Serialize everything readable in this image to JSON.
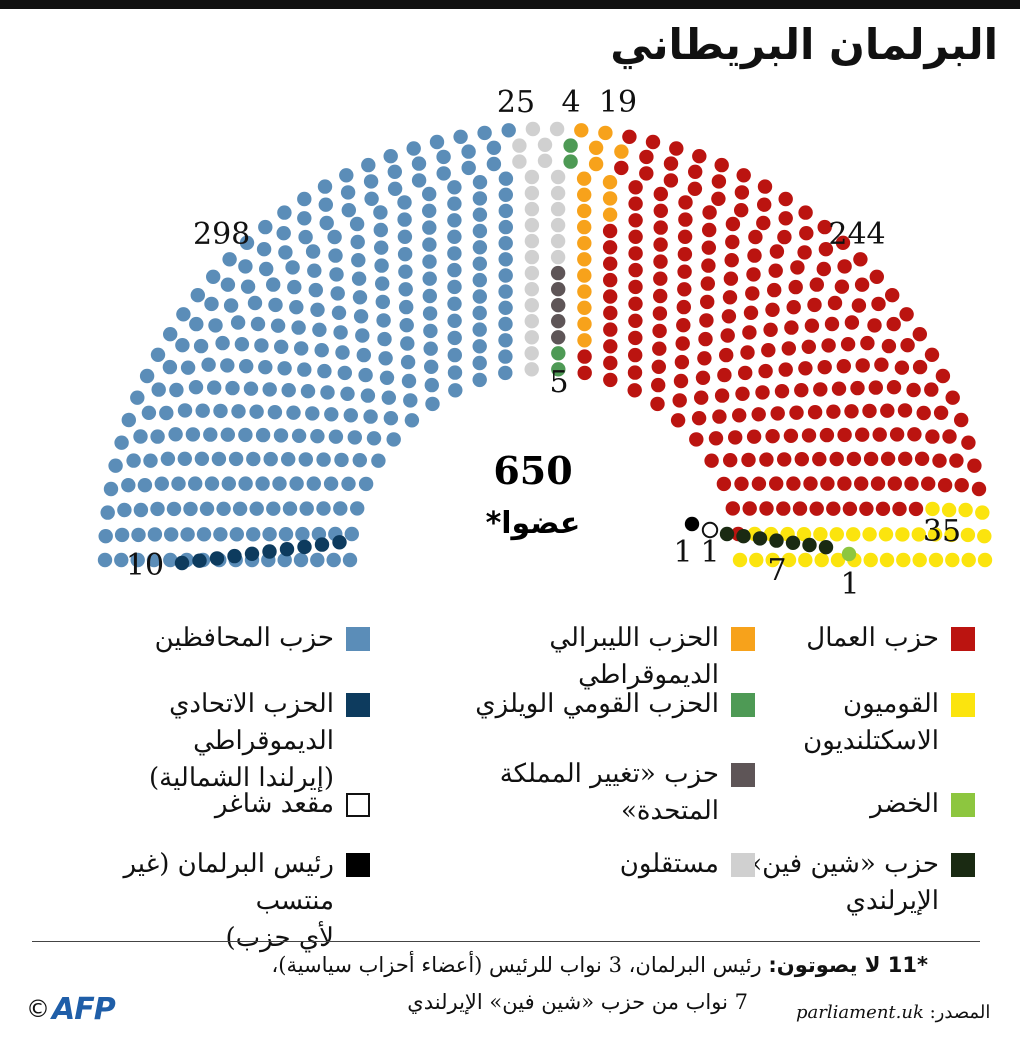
{
  "title": "البرلمان البريطاني",
  "chart_data": {
    "type": "parliament",
    "title": "البرلمان البريطاني",
    "total": "650",
    "total_caption": "عضوا*",
    "parties": [
      {
        "id": "con",
        "name": "حزب المحافظين",
        "seats": 298,
        "color": "#5b8db8",
        "label": "298"
      },
      {
        "id": "dup",
        "name": "الحزب الاتحادي الديموقراطي\n(إيرلندا الشمالية)",
        "seats": 10,
        "color": "#0d3b5e",
        "label": "10"
      },
      {
        "id": "ind",
        "name": "مستقلون",
        "seats": 25,
        "color": "#d0d0d0",
        "label": "25"
      },
      {
        "id": "cuk",
        "name": "حزب «تغيير المملكة\nالمتحدة»",
        "seats": 5,
        "color": "#5e5557",
        "label": "5"
      },
      {
        "id": "pc",
        "name": "الحزب القومي الويلزي",
        "seats": 4,
        "color": "#4e9a55",
        "label": "4"
      },
      {
        "id": "ld",
        "name": "الحزب الليبرالي الديموقراطي",
        "seats": 19,
        "color": "#f7a21b",
        "label": "19"
      },
      {
        "id": "lab",
        "name": "حزب العمال",
        "seats": 244,
        "color": "#bb1410",
        "label": "244"
      },
      {
        "id": "snp",
        "name": "القوميون\nالاسكتلنديون",
        "seats": 35,
        "color": "#fbe40e",
        "label": "35"
      },
      {
        "id": "grn",
        "name": "الخضر",
        "seats": 1,
        "color": "#8dc63f",
        "label": "1"
      },
      {
        "id": "sf",
        "name": "حزب «شين فين»\nالإيرلندي",
        "seats": 7,
        "color": "#1a2a12",
        "label": "7"
      },
      {
        "id": "vac",
        "name": "مقعد شاغر",
        "seats": 1,
        "color": "#ffffff",
        "label": "1"
      },
      {
        "id": "spk",
        "name": "رئيس البرلمان (غير منتسب\nلأي حزب)",
        "seats": 1,
        "color": "#000000",
        "label": "1"
      }
    ]
  },
  "legend": {
    "lab": "حزب العمال",
    "ld": "الحزب الليبرالي الديموقراطي",
    "con": "حزب المحافظين",
    "snp": "القوميون\nالاسكتلنديون",
    "pc": "الحزب القومي الويلزي",
    "dup": "الحزب الاتحادي الديموقراطي\n(إيرلندا الشمالية)",
    "grn": "الخضر",
    "cuk": "حزب «تغيير المملكة\nالمتحدة»",
    "vac": "مقعد شاغر",
    "sf": "حزب «شين فين»\nالإيرلندي",
    "ind": "مستقلون",
    "spk": "رئيس البرلمان (غير منتسب\nلأي حزب)"
  },
  "colors": {
    "lab": "#bb1410",
    "ld": "#f7a21b",
    "con": "#5b8db8",
    "snp": "#fbe40e",
    "pc": "#4e9a55",
    "dup": "#0d3b5e",
    "grn": "#8dc63f",
    "cuk": "#5e5557",
    "vac": "#ffffff",
    "sf": "#1a2a12",
    "ind": "#d0d0d0",
    "spk": "#000000"
  },
  "footnote": {
    "bold": "*11 لا يصوتون:",
    "line1": "رئيس البرلمان، 3 نواب للرئيس (أعضاء أحزاب سياسية)،",
    "line2": "7 نواب من حزب «شين فين» الإيرلندي"
  },
  "source": {
    "label": "المصدر:",
    "value": "parliament.uk"
  },
  "credit": {
    "copyright": "©",
    "agency": "AFP"
  }
}
